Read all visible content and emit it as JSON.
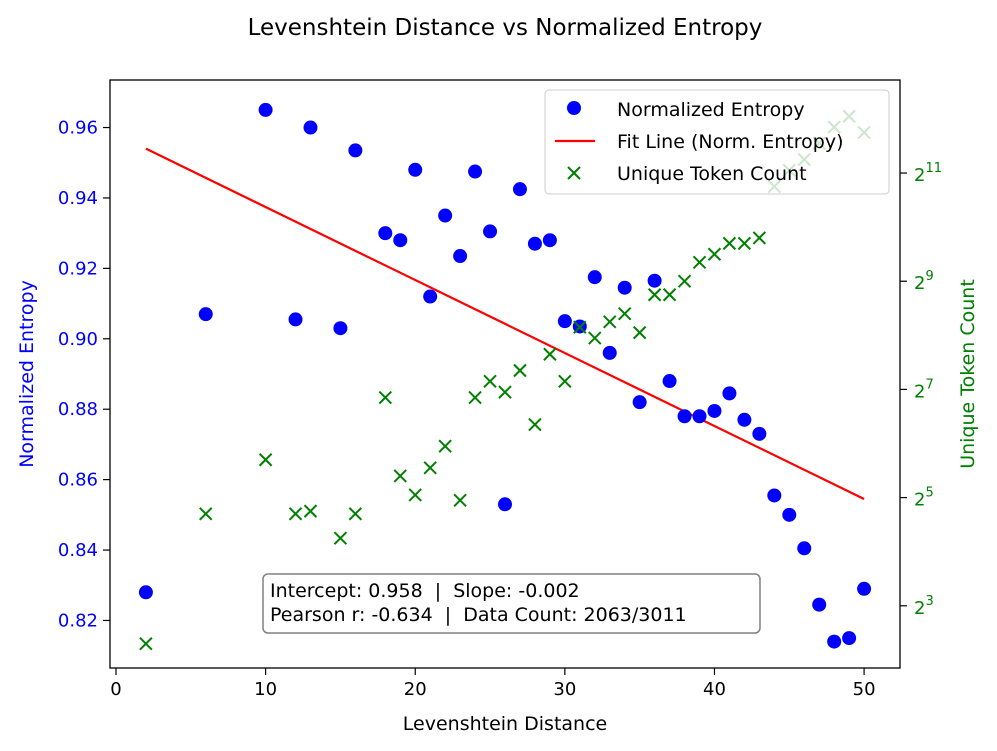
{
  "chart_data": {
    "type": "scatter",
    "title": "Levenshtein Distance vs Normalized Entropy",
    "xlabel": "Levenshtein Distance",
    "ylabel": "Normalized Entropy",
    "ylabel_right": "Unique Token Count",
    "xlim": [
      -0.4,
      52.4
    ],
    "ylim": [
      0.8065,
      0.9735
    ],
    "y2lim_log2": [
      1.85,
      12.72
    ],
    "x_ticks": [
      0,
      10,
      20,
      30,
      40,
      50
    ],
    "y_ticks": [
      0.82,
      0.84,
      0.86,
      0.88,
      0.9,
      0.92,
      0.94,
      0.96
    ],
    "y2_ticks": [
      {
        "exp": 3,
        "base": "2",
        "sup": "3"
      },
      {
        "exp": 5,
        "base": "2",
        "sup": "5"
      },
      {
        "exp": 7,
        "base": "2",
        "sup": "7"
      },
      {
        "exp": 9,
        "base": "2",
        "sup": "9"
      },
      {
        "exp": 11,
        "base": "2",
        "sup": "11"
      }
    ],
    "series": [
      {
        "name": "Normalized Entropy",
        "axis": "left",
        "marker": "circle",
        "color": "#0000ff",
        "points": [
          [
            2,
            0.828
          ],
          [
            6,
            0.907
          ],
          [
            10,
            0.965
          ],
          [
            12,
            0.9055
          ],
          [
            13,
            0.96
          ],
          [
            15,
            0.903
          ],
          [
            16,
            0.9535
          ],
          [
            18,
            0.93
          ],
          [
            19,
            0.928
          ],
          [
            20,
            0.948
          ],
          [
            21,
            0.912
          ],
          [
            22,
            0.935
          ],
          [
            23,
            0.9235
          ],
          [
            24,
            0.9475
          ],
          [
            25,
            0.9305
          ],
          [
            26,
            0.853
          ],
          [
            27,
            0.9425
          ],
          [
            28,
            0.927
          ],
          [
            29,
            0.928
          ],
          [
            30,
            0.905
          ],
          [
            31,
            0.9035
          ],
          [
            32,
            0.9175
          ],
          [
            33,
            0.896
          ],
          [
            34,
            0.9145
          ],
          [
            35,
            0.882
          ],
          [
            36,
            0.9165
          ],
          [
            37,
            0.888
          ],
          [
            38,
            0.878
          ],
          [
            39,
            0.878
          ],
          [
            40,
            0.8795
          ],
          [
            41,
            0.8845
          ],
          [
            42,
            0.877
          ],
          [
            43,
            0.873
          ],
          [
            44,
            0.8555
          ],
          [
            45,
            0.85
          ],
          [
            46,
            0.8405
          ],
          [
            47,
            0.8245
          ],
          [
            48,
            0.814
          ],
          [
            49,
            0.815
          ],
          [
            50,
            0.829
          ]
        ]
      },
      {
        "name": "Fit Line (Norm. Entropy)",
        "axis": "left",
        "marker": "line",
        "color": "#ff0000",
        "points": [
          [
            2,
            0.954
          ],
          [
            50,
            0.8545
          ]
        ]
      },
      {
        "name": "Unique Token Count",
        "axis": "right",
        "marker": "x",
        "color": "#008000",
        "points_log2": [
          [
            2,
            2.3
          ],
          [
            6,
            4.7
          ],
          [
            10,
            5.7
          ],
          [
            12,
            4.7
          ],
          [
            13,
            4.75
          ],
          [
            15,
            4.25
          ],
          [
            16,
            4.7
          ],
          [
            18,
            6.85
          ],
          [
            19,
            5.4
          ],
          [
            20,
            5.05
          ],
          [
            21,
            5.55
          ],
          [
            22,
            5.95
          ],
          [
            23,
            4.95
          ],
          [
            24,
            6.85
          ],
          [
            25,
            7.15
          ],
          [
            26,
            6.95
          ],
          [
            27,
            7.35
          ],
          [
            28,
            6.35
          ],
          [
            29,
            7.65
          ],
          [
            30,
            7.15
          ],
          [
            31,
            8.15
          ],
          [
            32,
            7.95
          ],
          [
            33,
            8.25
          ],
          [
            34,
            8.4
          ],
          [
            35,
            8.05
          ],
          [
            36,
            8.75
          ],
          [
            37,
            8.75
          ],
          [
            38,
            9.0
          ],
          [
            39,
            9.35
          ],
          [
            40,
            9.5
          ],
          [
            41,
            9.7
          ],
          [
            42,
            9.7
          ],
          [
            43,
            9.8
          ],
          [
            44,
            10.75
          ],
          [
            45,
            11.05
          ],
          [
            46,
            11.25
          ],
          [
            47,
            11.55
          ],
          [
            48,
            11.85
          ],
          [
            49,
            12.05
          ],
          [
            50,
            11.75
          ]
        ]
      }
    ],
    "legend": {
      "position": "upper-right",
      "entries": [
        "Normalized Entropy",
        "Fit Line (Norm. Entropy)",
        "Unique Token Count"
      ]
    },
    "annotation": {
      "line1": "Intercept: 0.958  |  Slope: -0.002",
      "line2": "Pearson r: -0.634  |  Data Count: 2063/3011"
    }
  }
}
